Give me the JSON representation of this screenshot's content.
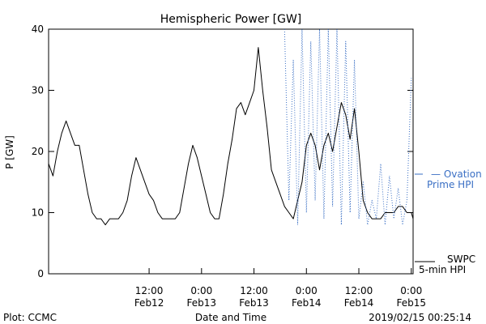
{
  "chart_data": {
    "type": "line",
    "title": "Hemispheric Power [GW]",
    "ylabel": "P [GW]",
    "xlabel": "Date and Time",
    "ylim": [
      0,
      40
    ],
    "yticks": [
      0,
      10,
      20,
      30,
      40
    ],
    "xlim": [
      "2019-02-11T13:00",
      "2019-02-15T00:25"
    ],
    "xticks": [
      {
        "time": "2019-02-12T12:00",
        "line1": "12:00",
        "line2": "Feb12"
      },
      {
        "time": "2019-02-13T00:00",
        "line1": "0:00",
        "line2": "Feb13"
      },
      {
        "time": "2019-02-13T12:00",
        "line1": "12:00",
        "line2": "Feb13"
      },
      {
        "time": "2019-02-14T00:00",
        "line1": "0:00",
        "line2": "Feb14"
      },
      {
        "time": "2019-02-14T12:00",
        "line1": "12:00",
        "line2": "Feb14"
      },
      {
        "time": "2019-02-15T00:00",
        "line1": "0:00",
        "line2": "Feb15"
      }
    ],
    "legend_position": "right",
    "series": [
      {
        "name": "SWPC 5-min HPI",
        "legend_line1": "SWPC",
        "legend_line2": "5-min HPI",
        "color": "#000000",
        "style": "solid",
        "x": [
          "2019-02-11T13:00",
          "2019-02-11T14:00",
          "2019-02-11T15:00",
          "2019-02-11T16:00",
          "2019-02-11T17:00",
          "2019-02-11T18:00",
          "2019-02-11T19:00",
          "2019-02-11T20:00",
          "2019-02-11T21:00",
          "2019-02-11T22:00",
          "2019-02-11T23:00",
          "2019-02-12T00:00",
          "2019-02-12T01:00",
          "2019-02-12T02:00",
          "2019-02-12T03:00",
          "2019-02-12T04:00",
          "2019-02-12T05:00",
          "2019-02-12T06:00",
          "2019-02-12T07:00",
          "2019-02-12T08:00",
          "2019-02-12T09:00",
          "2019-02-12T10:00",
          "2019-02-12T11:00",
          "2019-02-12T12:00",
          "2019-02-12T13:00",
          "2019-02-12T14:00",
          "2019-02-12T15:00",
          "2019-02-12T16:00",
          "2019-02-12T17:00",
          "2019-02-12T18:00",
          "2019-02-12T19:00",
          "2019-02-12T20:00",
          "2019-02-12T21:00",
          "2019-02-12T22:00",
          "2019-02-12T23:00",
          "2019-02-13T00:00",
          "2019-02-13T01:00",
          "2019-02-13T02:00",
          "2019-02-13T03:00",
          "2019-02-13T04:00",
          "2019-02-13T05:00",
          "2019-02-13T06:00",
          "2019-02-13T07:00",
          "2019-02-13T08:00",
          "2019-02-13T09:00",
          "2019-02-13T10:00",
          "2019-02-13T11:00",
          "2019-02-13T12:00",
          "2019-02-13T13:00",
          "2019-02-13T14:00",
          "2019-02-13T15:00",
          "2019-02-13T16:00",
          "2019-02-13T17:00",
          "2019-02-13T18:00",
          "2019-02-13T19:00",
          "2019-02-13T20:00",
          "2019-02-13T21:00",
          "2019-02-13T22:00",
          "2019-02-13T23:00",
          "2019-02-14T00:00",
          "2019-02-14T01:00",
          "2019-02-14T02:00",
          "2019-02-14T03:00",
          "2019-02-14T04:00",
          "2019-02-14T05:00",
          "2019-02-14T06:00",
          "2019-02-14T07:00",
          "2019-02-14T08:00",
          "2019-02-14T09:00",
          "2019-02-14T10:00",
          "2019-02-14T11:00",
          "2019-02-14T12:00",
          "2019-02-14T13:00",
          "2019-02-14T14:00",
          "2019-02-14T15:00",
          "2019-02-14T16:00",
          "2019-02-14T17:00",
          "2019-02-14T18:00",
          "2019-02-14T19:00",
          "2019-02-14T20:00",
          "2019-02-14T21:00",
          "2019-02-14T22:00",
          "2019-02-14T23:00",
          "2019-02-15T00:00",
          "2019-02-15T00:25"
        ],
        "y": [
          18,
          16,
          20,
          23,
          25,
          23,
          21,
          21,
          17,
          13,
          10,
          9,
          9,
          8,
          9,
          9,
          9,
          10,
          12,
          16,
          19,
          17,
          15,
          13,
          12,
          10,
          9,
          9,
          9,
          9,
          10,
          14,
          18,
          21,
          19,
          16,
          13,
          10,
          9,
          9,
          13,
          18,
          22,
          27,
          28,
          26,
          28,
          30,
          37,
          30,
          24,
          17,
          15,
          13,
          11,
          10,
          9,
          12,
          15,
          21,
          23,
          21,
          17,
          21,
          23,
          20,
          24,
          28,
          26,
          22,
          27,
          20,
          12,
          10,
          9,
          9,
          9,
          10,
          10,
          10,
          11,
          11,
          10,
          10,
          9
        ]
      },
      {
        "name": "Ovation Prime HPI",
        "legend_line1": "— Ovation",
        "legend_line2": "Prime HPI",
        "color": "#3a6fc4",
        "style": "dotted",
        "x": [
          "2019-02-13T19:00",
          "2019-02-13T20:00",
          "2019-02-13T21:00",
          "2019-02-13T22:00",
          "2019-02-13T23:00",
          "2019-02-14T00:00",
          "2019-02-14T01:00",
          "2019-02-14T02:00",
          "2019-02-14T03:00",
          "2019-02-14T04:00",
          "2019-02-14T05:00",
          "2019-02-14T06:00",
          "2019-02-14T07:00",
          "2019-02-14T08:00",
          "2019-02-14T09:00",
          "2019-02-14T10:00",
          "2019-02-14T11:00",
          "2019-02-14T12:00",
          "2019-02-14T13:00",
          "2019-02-14T14:00",
          "2019-02-14T15:00",
          "2019-02-14T16:00",
          "2019-02-14T17:00",
          "2019-02-14T18:00",
          "2019-02-14T19:00",
          "2019-02-14T20:00",
          "2019-02-14T21:00",
          "2019-02-14T22:00",
          "2019-02-14T23:00",
          "2019-02-15T00:00"
        ],
        "y": [
          40,
          12,
          35,
          8,
          40,
          10,
          38,
          12,
          40,
          9,
          40,
          11,
          40,
          8,
          38,
          10,
          35,
          9,
          15,
          8,
          12,
          9,
          18,
          8,
          16,
          9,
          14,
          8,
          12,
          32
        ]
      }
    ]
  },
  "footer": {
    "plot_label": "Plot: CCMC",
    "timestamp": "2019/02/15 00:25:14"
  }
}
